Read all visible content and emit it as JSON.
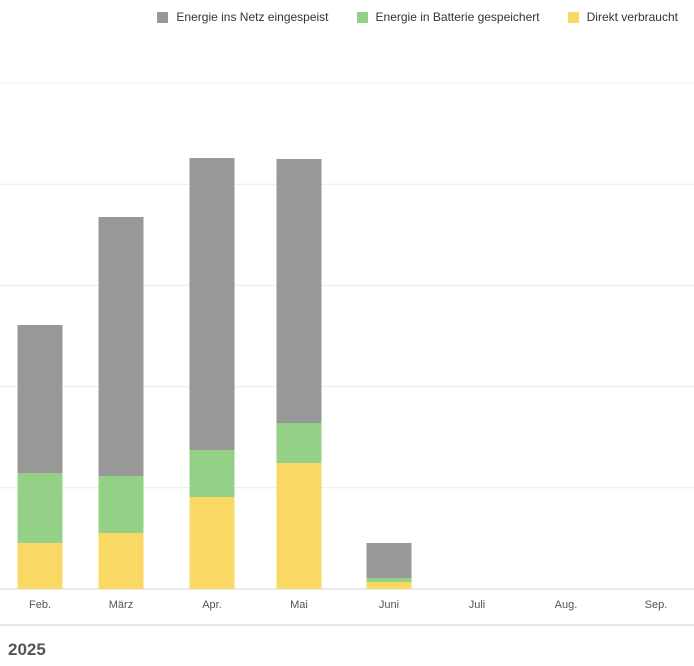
{
  "chart_data": {
    "type": "bar",
    "stacked": true,
    "categories": [
      "Feb.",
      "März",
      "Apr.",
      "Mai",
      "Juni",
      "Juli",
      "Aug.",
      "Sep."
    ],
    "series": [
      {
        "name": "Direkt verbraucht",
        "color": "#f9d863",
        "values": [
          46,
          56,
          92,
          126,
          7,
          0,
          0,
          0
        ]
      },
      {
        "name": "Energie in Batterie gespeichert",
        "color": "#94d085",
        "values": [
          70,
          57,
          47,
          40,
          4,
          0,
          0,
          0
        ]
      },
      {
        "name": "Energie ins Netz eingespeist",
        "color": "#989898",
        "values": [
          148,
          259,
          292,
          264,
          35,
          0,
          0,
          0
        ]
      }
    ],
    "legend_order": [
      2,
      1,
      0
    ],
    "ylim": [
      0,
      506
    ],
    "grid": true,
    "legend_position": "top-right"
  },
  "footer": {
    "year": "2025"
  }
}
